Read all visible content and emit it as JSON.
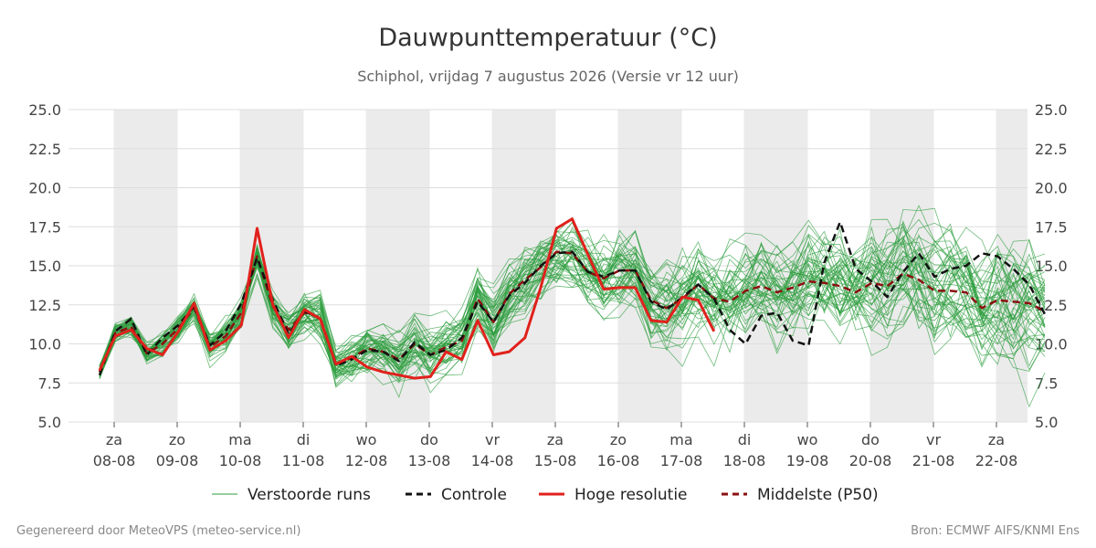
{
  "chart_data": {
    "type": "line",
    "title": "Dauwpunttemperatuur (°C)",
    "subtitle": "Schiphol, vrijdag  7 augustus 2026 (Versie vr 12 uur)",
    "ylim": [
      5.0,
      25.0
    ],
    "yticks": [
      "5.0",
      "7.5",
      "10.0",
      "12.5",
      "15.0",
      "17.5",
      "20.0",
      "22.5",
      "25.0"
    ],
    "xlim": [
      0,
      120
    ],
    "x_step_hours": 6,
    "x_start_hour": -2,
    "day_labels": [
      {
        "day": "za",
        "date": "08-08"
      },
      {
        "day": "zo",
        "date": "09-08"
      },
      {
        "day": "ma",
        "date": "10-08"
      },
      {
        "day": "di",
        "date": "11-08"
      },
      {
        "day": "wo",
        "date": "12-08"
      },
      {
        "day": "do",
        "date": "13-08"
      },
      {
        "day": "vr",
        "date": "14-08"
      },
      {
        "day": "za",
        "date": "15-08"
      },
      {
        "day": "zo",
        "date": "16-08"
      },
      {
        "day": "ma",
        "date": "17-08"
      },
      {
        "day": "di",
        "date": "18-08"
      },
      {
        "day": "wo",
        "date": "19-08"
      },
      {
        "day": "do",
        "date": "20-08"
      },
      {
        "day": "vr",
        "date": "21-08"
      },
      {
        "day": "za",
        "date": "22-08"
      }
    ],
    "shaded_days": [
      0,
      2,
      4,
      6,
      8,
      10,
      12,
      14
    ],
    "series": [
      {
        "name": "Controle",
        "color": "#111111",
        "dashed": true,
        "values": [
          8.0,
          10.8,
          11.6,
          9.3,
          10.4,
          11.2,
          12.4,
          9.9,
          10.8,
          12.6,
          15.5,
          12.8,
          10.6,
          12.1,
          11.6,
          8.6,
          9.0,
          9.6,
          9.5,
          8.9,
          10.1,
          9.3,
          9.6,
          10.4,
          12.7,
          11.4,
          13.1,
          13.9,
          15.0,
          15.8,
          15.9,
          14.6,
          14.3,
          14.7,
          14.7,
          12.7,
          12.2,
          13.0,
          13.8,
          12.9,
          10.9,
          10.0,
          11.8,
          12.0,
          10.2,
          9.9,
          15.2,
          17.8,
          14.8,
          14.0,
          13.0,
          14.6,
          15.8,
          14.3,
          14.8,
          15.0,
          15.8,
          15.6,
          14.8,
          13.8,
          11.9
        ]
      },
      {
        "name": "Hoge resolutie",
        "color": "#e0211c",
        "dashed": false,
        "values": [
          8.3,
          10.5,
          10.9,
          9.7,
          9.3,
          10.8,
          12.6,
          9.6,
          10.2,
          11.2,
          17.4,
          12.5,
          10.4,
          12.2,
          11.6,
          8.7,
          9.2,
          8.5,
          8.2,
          8.0,
          7.8,
          7.9,
          9.5,
          9.0,
          11.5,
          9.3,
          9.5,
          10.4,
          13.6,
          17.4,
          18.0,
          15.7,
          13.5,
          13.6,
          13.6,
          11.5,
          11.4,
          13.0,
          12.8,
          10.8
        ]
      },
      {
        "name": "Middelste (P50)",
        "color": "#8b1010",
        "dashed": true,
        "values": [
          8.2,
          10.7,
          11.1,
          9.4,
          10.0,
          11.0,
          12.3,
          9.8,
          10.5,
          12.0,
          15.6,
          12.4,
          10.9,
          12.0,
          11.7,
          8.7,
          9.1,
          9.7,
          9.5,
          9.0,
          10.0,
          9.3,
          9.8,
          10.2,
          12.9,
          11.4,
          13.2,
          14.1,
          14.9,
          15.9,
          15.8,
          14.6,
          14.2,
          14.7,
          14.7,
          12.8,
          12.3,
          12.9,
          13.8,
          12.9,
          12.7,
          13.4,
          13.7,
          13.3,
          13.6,
          14.0,
          13.9,
          13.7,
          13.3,
          13.9,
          13.7,
          14.5,
          14.1,
          13.4,
          13.4,
          13.3,
          12.3,
          12.8,
          12.7,
          12.6,
          12.1
        ]
      }
    ],
    "ensemble": {
      "name": "Verstoorde runs",
      "color": "#2e9e3e",
      "count": 50,
      "spread_note": "50 perturbed runs clustered around the median; spread grows with lead time"
    },
    "legend": {
      "placement": "bottom",
      "items": [
        {
          "label": "Verstoorde runs",
          "color": "#2e9e3e",
          "style": "thin"
        },
        {
          "label": "Controle",
          "color": "#111111",
          "style": "dashed"
        },
        {
          "label": "Hoge resolutie",
          "color": "#e0211c",
          "style": "solid"
        },
        {
          "label": "Middelste (P50)",
          "color": "#8b1010",
          "style": "dashed"
        }
      ]
    },
    "grid": true
  },
  "footer": {
    "left": "Gegenereerd door MeteoVPS (meteo-service.nl)",
    "right": "Bron: ECMWF AIFS/KNMI Ens"
  }
}
